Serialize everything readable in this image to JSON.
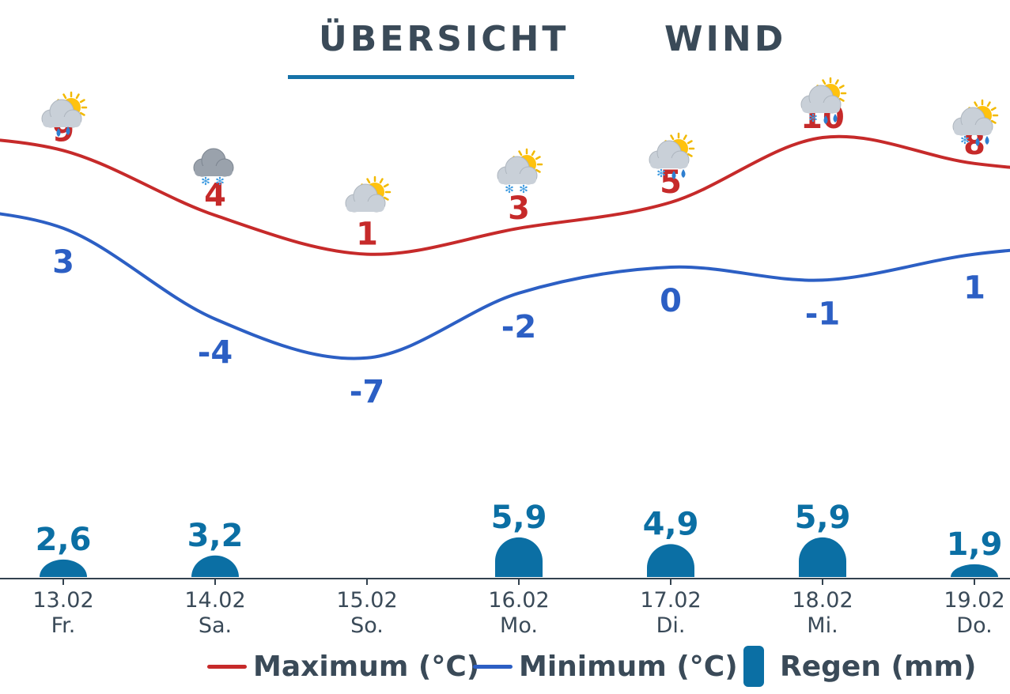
{
  "tabs": [
    {
      "label": "ÜBERSICHT",
      "active": true
    },
    {
      "label": "WIND",
      "active": false
    }
  ],
  "colors": {
    "max": "#c62a2a",
    "min": "#2c5fc4",
    "rain": "#0b6fa4",
    "text": "#3a4a58",
    "tab_underline": "#1572a8"
  },
  "chart_data": {
    "type": "line",
    "dates": [
      "13.02",
      "14.02",
      "15.02",
      "16.02",
      "17.02",
      "18.02",
      "19.02"
    ],
    "weekdays": [
      "Fr.",
      "Sa.",
      "So.",
      "Mo.",
      "Di.",
      "Mi.",
      "Do."
    ],
    "icons": [
      "sun-cloud-rain",
      "cloud-snow",
      "sun-cloud",
      "sun-cloud-snow",
      "sun-cloud-rain-snow",
      "sun-cloud-rain-snow",
      "sun-cloud-rain-snow"
    ],
    "series": [
      {
        "name": "Maximum (°C)",
        "values": [
          9,
          4,
          1,
          3,
          5,
          10,
          8
        ]
      },
      {
        "name": "Minimum (°C)",
        "values": [
          3,
          -4,
          -7,
          -2,
          0,
          -1,
          1
        ]
      }
    ],
    "rain": {
      "name": "Regen (mm)",
      "labels": [
        "2,6",
        "3,2",
        "",
        "5,9",
        "4,9",
        "5,9",
        "1,9"
      ],
      "values": [
        2.6,
        3.2,
        0,
        5.9,
        4.9,
        5.9,
        1.9
      ]
    }
  },
  "legend": {
    "max_label": "Maximum (°C)",
    "min_label": "Minimum (°C)",
    "rain_label": "Regen (mm)"
  }
}
